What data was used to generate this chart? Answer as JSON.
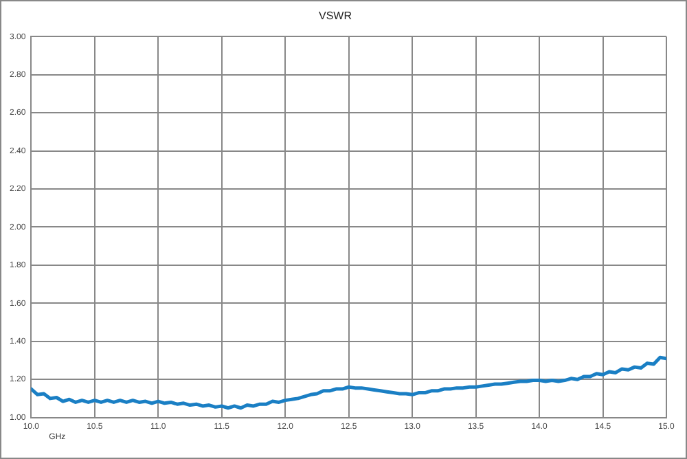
{
  "chart_data": {
    "type": "line",
    "title": "VSWR",
    "xlabel": "GHz",
    "x": [
      10.0,
      10.05,
      10.1,
      10.15,
      10.2,
      10.25,
      10.3,
      10.35,
      10.4,
      10.45,
      10.5,
      10.55,
      10.6,
      10.65,
      10.7,
      10.75,
      10.8,
      10.85,
      10.9,
      10.95,
      11.0,
      11.05,
      11.1,
      11.15,
      11.2,
      11.25,
      11.3,
      11.35,
      11.4,
      11.45,
      11.5,
      11.55,
      11.6,
      11.65,
      11.7,
      11.75,
      11.8,
      11.85,
      11.9,
      11.95,
      12.0,
      12.05,
      12.1,
      12.15,
      12.2,
      12.25,
      12.3,
      12.35,
      12.4,
      12.45,
      12.5,
      12.55,
      12.6,
      12.65,
      12.7,
      12.75,
      12.8,
      12.85,
      12.9,
      12.95,
      13.0,
      13.05,
      13.1,
      13.15,
      13.2,
      13.25,
      13.3,
      13.35,
      13.4,
      13.45,
      13.5,
      13.55,
      13.6,
      13.65,
      13.7,
      13.75,
      13.8,
      13.85,
      13.9,
      13.95,
      14.0,
      14.05,
      14.1,
      14.15,
      14.2,
      14.25,
      14.3,
      14.35,
      14.4,
      14.45,
      14.5,
      14.55,
      14.6,
      14.65,
      14.7,
      14.75,
      14.8,
      14.85,
      14.9,
      14.95,
      15.0
    ],
    "series": [
      {
        "color": "#1a7fc4",
        "values": [
          1.15,
          1.12,
          1.125,
          1.1,
          1.105,
          1.085,
          1.095,
          1.08,
          1.09,
          1.08,
          1.09,
          1.08,
          1.09,
          1.08,
          1.09,
          1.08,
          1.09,
          1.08,
          1.085,
          1.075,
          1.085,
          1.075,
          1.08,
          1.07,
          1.075,
          1.065,
          1.07,
          1.06,
          1.065,
          1.055,
          1.06,
          1.05,
          1.06,
          1.05,
          1.065,
          1.06,
          1.07,
          1.07,
          1.085,
          1.08,
          1.09,
          1.095,
          1.1,
          1.11,
          1.12,
          1.125,
          1.14,
          1.14,
          1.15,
          1.15,
          1.16,
          1.155,
          1.155,
          1.15,
          1.145,
          1.14,
          1.135,
          1.13,
          1.125,
          1.125,
          1.12,
          1.13,
          1.13,
          1.14,
          1.14,
          1.15,
          1.15,
          1.155,
          1.155,
          1.16,
          1.16,
          1.165,
          1.17,
          1.175,
          1.175,
          1.18,
          1.185,
          1.19,
          1.19,
          1.195,
          1.195,
          1.19,
          1.195,
          1.19,
          1.195,
          1.205,
          1.2,
          1.215,
          1.215,
          1.23,
          1.225,
          1.24,
          1.235,
          1.255,
          1.25,
          1.265,
          1.26,
          1.285,
          1.28,
          1.315,
          1.31
        ]
      }
    ],
    "xlim": [
      10.0,
      15.0
    ],
    "xticks": [
      {
        "value": 10,
        "label": "10.0"
      },
      {
        "value": 10.5,
        "label": "10.5"
      },
      {
        "value": 11,
        "label": "11.0"
      },
      {
        "value": 11.5,
        "label": "11.5"
      },
      {
        "value": 12,
        "label": "12.0"
      },
      {
        "value": 12.5,
        "label": "12.5"
      },
      {
        "value": 13,
        "label": "13.0"
      },
      {
        "value": 13.5,
        "label": "13.5"
      },
      {
        "value": 14,
        "label": "14.0"
      },
      {
        "value": 14.5,
        "label": "14.5"
      },
      {
        "value": 15,
        "label": "15.0"
      }
    ],
    "ylim": [
      1.0,
      3.0
    ],
    "yticks": [
      {
        "value": 1,
        "label": "1.00"
      },
      {
        "value": 1.2,
        "label": "1.20"
      },
      {
        "value": 1.4,
        "label": "1.40"
      },
      {
        "value": 1.6,
        "label": "1.60"
      },
      {
        "value": 1.8,
        "label": "1.80"
      },
      {
        "value": 2,
        "label": "2.00"
      },
      {
        "value": 2.2,
        "label": "2.20"
      },
      {
        "value": 2.4,
        "label": "2.40"
      },
      {
        "value": 2.6,
        "label": "2.60"
      },
      {
        "value": 2.8,
        "label": "2.80"
      },
      {
        "value": 3,
        "label": "3.00"
      }
    ],
    "grid": true,
    "legend": false,
    "marker": "none",
    "line_style": "solid"
  }
}
